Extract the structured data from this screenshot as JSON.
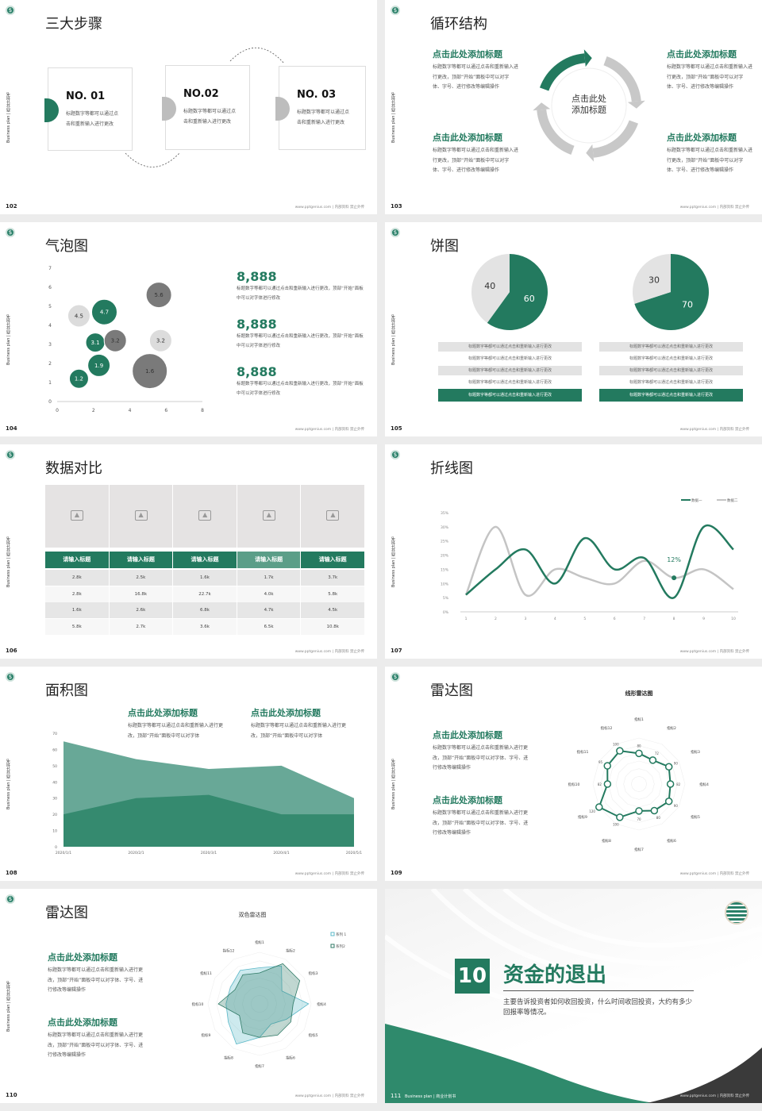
{
  "common": {
    "side_label": "Business plan | 商业计划书",
    "footer": "www.pptgenius.com | 内部资料 禁止外传",
    "logo": "dollar-seal-logo",
    "accent": "#237a5f",
    "gray": "#bdbdbd",
    "dark_gray": "#7a7a7a",
    "light_gray": "#dcdcdc"
  },
  "s102": {
    "page": "102",
    "title": "三大步骤",
    "steps": [
      {
        "no": "NO. 01",
        "text": "标题数字等都可以通过点击和重新输入进行更改"
      },
      {
        "no": "NO.02",
        "text": "标题数字等都可以通过点击和重新输入进行更改"
      },
      {
        "no": "NO. 03",
        "text": "标题数字等都可以通过点击和重新输入进行更改"
      }
    ]
  },
  "s103": {
    "page": "103",
    "title": "循环结构",
    "center": "点击此处添加标题",
    "blocks": [
      {
        "title": "点击此处添加标题",
        "text": "标题数字等都可以通过点击和重新输入进行更改，顶部“开始”面板中可以对字体、字号、进行修改等编辑操作"
      },
      {
        "title": "点击此处添加标题",
        "text": "标题数字等都可以通过点击和重新输入进行更改，顶部“开始”面板中可以对字体、字号、进行修改等编辑操作"
      },
      {
        "title": "点击此处添加标题",
        "text": "标题数字等都可以通过点击和重新输入进行更改，顶部“开始”面板中可以对字体、字号、进行修改等编辑操作"
      },
      {
        "title": "点击此处添加标题",
        "text": "标题数字等都可以通过点击和重新输入进行更改，顶部“开始”面板中可以对字体、字号、进行修改等编辑操作"
      }
    ]
  },
  "s104": {
    "page": "104",
    "title": "气泡图",
    "stats": [
      {
        "value": "8,888",
        "text": "标题数字等都可以通过点击和重新输入进行更改，顶部“开始”面板中可以对字体进行修改"
      },
      {
        "value": "8,888",
        "text": "标题数字等都可以通过点击和重新输入进行更改，顶部“开始”面板中可以对字体进行修改"
      },
      {
        "value": "8,888",
        "text": "标题数字等都可以通过点击和重新输入进行更改，顶部“开始”面板中可以对字体进行修改"
      }
    ]
  },
  "s105": {
    "page": "105",
    "title": "饼图",
    "row_text": "标题数字等都可以通过点击和重新输入进行更改"
  },
  "s106": {
    "page": "106",
    "title": "数据对比",
    "image_icon": "image-placeholder-icon",
    "headers": [
      "请输入标题",
      "请输入标题",
      "请输入标题",
      "请输入标题",
      "请输入标题"
    ],
    "rows": [
      [
        "2.8k",
        "2.5k",
        "1.6k",
        "1.7k",
        "3.7k"
      ],
      [
        "2.8k",
        "16.8k",
        "22.7k",
        "4.0k",
        "5.8k"
      ],
      [
        "1.6k",
        "2.6k",
        "6.8k",
        "4.7k",
        "4.5k"
      ],
      [
        "5.8k",
        "2.7k",
        "3.6k",
        "6.5k",
        "10.8k"
      ]
    ]
  },
  "s107": {
    "page": "107",
    "title": "折线图"
  },
  "s108": {
    "page": "108",
    "title": "面积图",
    "blocks": [
      {
        "title": "点击此处添加标题",
        "text": "标题数字等都可以通过点击和重新输入进行更改，顶部“开始”面板中可以对字体"
      },
      {
        "title": "点击此处添加标题",
        "text": "标题数字等都可以通过点击和重新输入进行更改，顶部“开始”面板中可以对字体"
      }
    ]
  },
  "s109": {
    "page": "109",
    "title": "雷达图",
    "blocks": [
      {
        "title": "点击此处添加标题",
        "text": "标题数字等都可以通过点击和重新输入进行更改，顶部“开始”面板中可以对字体、字号、进行修改等编辑操作"
      },
      {
        "title": "点击此处添加标题",
        "text": "标题数字等都可以通过点击和重新输入进行更改，顶部“开始”面板中可以对字体、字号、进行修改等编辑操作"
      }
    ]
  },
  "s110": {
    "page": "110",
    "title": "雷达图",
    "blocks": [
      {
        "title": "点击此处添加标题",
        "text": "标题数字等都可以通过点击和重新输入进行更改，顶部“开始”面板中可以对字体、字号、进行修改等编辑操作"
      },
      {
        "title": "点击此处添加标题",
        "text": "标题数字等都可以通过点击和重新输入进行更改，顶部“开始”面板中可以对字体、字号、进行修改等编辑操作"
      }
    ]
  },
  "s111": {
    "page": "111",
    "footer_label": "Business plan | 商业计划书",
    "number": "10",
    "title": "资金的退出",
    "desc": "主要告诉投资者如何收回投资，什么时间收回投资，大约有多少回报率等情况。"
  },
  "chart_data": [
    {
      "type": "scatter",
      "subtype": "bubble",
      "xlim": [
        0,
        8
      ],
      "ylim": [
        0,
        7
      ],
      "xticks": [
        0,
        2,
        4,
        6,
        8
      ],
      "yticks": [
        0,
        1,
        2,
        3,
        4,
        5,
        6,
        7
      ],
      "points": [
        {
          "x": 1.2,
          "y": 1.2,
          "size": 1.2,
          "label": "1.2",
          "color": "green"
        },
        {
          "x": 2.3,
          "y": 1.9,
          "size": 1.9,
          "label": "1.9",
          "color": "green"
        },
        {
          "x": 2.1,
          "y": 3.1,
          "size": 3.1,
          "label": "3.1",
          "color": "green"
        },
        {
          "x": 2.6,
          "y": 4.7,
          "size": 4.7,
          "label": "4.7",
          "color": "green"
        },
        {
          "x": 1.2,
          "y": 4.5,
          "size": 4.5,
          "label": "4.5",
          "color": "light"
        },
        {
          "x": 3.2,
          "y": 3.2,
          "size": 3.2,
          "label": "3.2",
          "color": "dark"
        },
        {
          "x": 5.6,
          "y": 5.6,
          "size": 5.6,
          "label": "5.6",
          "color": "dark"
        },
        {
          "x": 5.7,
          "y": 3.2,
          "size": 3.2,
          "label": "3.2",
          "color": "light"
        },
        {
          "x": 5.1,
          "y": 1.6,
          "size": 7,
          "label": "1.6",
          "color": "dark"
        }
      ]
    },
    {
      "type": "pie",
      "values": [
        60,
        40
      ],
      "labels": [
        "60",
        "40"
      ]
    },
    {
      "type": "pie",
      "values": [
        70,
        30
      ],
      "labels": [
        "70",
        "30"
      ]
    },
    {
      "type": "line",
      "x": [
        1,
        2,
        3,
        4,
        5,
        6,
        7,
        8,
        9,
        10
      ],
      "ylim": [
        0,
        35
      ],
      "yticks": [
        "0%",
        "5%",
        "10%",
        "15%",
        "20%",
        "25%",
        "30%",
        "35%"
      ],
      "legend": "top-right",
      "series": [
        {
          "name": "数据一",
          "values": [
            6,
            15,
            22,
            10,
            26,
            15,
            19,
            5,
            30,
            22
          ],
          "color": "#237a5f"
        },
        {
          "name": "数据二",
          "values": [
            6,
            30,
            6,
            15,
            12,
            10,
            18,
            12,
            15,
            8
          ],
          "color": "#c4c4c4"
        }
      ],
      "annotation": {
        "x": 8,
        "y": 12,
        "label": "12%"
      }
    },
    {
      "type": "area",
      "categories": [
        "2020/1/1",
        "2020/2/1",
        "2020/3/1",
        "2020/4/1",
        "2020/5/1"
      ],
      "ylim": [
        0,
        70
      ],
      "yticks": [
        0,
        10,
        20,
        30,
        40,
        50,
        60,
        70
      ],
      "series": [
        {
          "values": [
            65,
            54,
            48,
            50,
            30
          ],
          "color": "#68a897"
        },
        {
          "values": [
            20,
            30,
            32,
            20,
            20
          ],
          "color": "#358a6f"
        }
      ]
    },
    {
      "type": "radar",
      "title": "线形雷达图",
      "axes": [
        "指标1",
        "指标2",
        "指标3",
        "指标4",
        "指标5",
        "指标6",
        "指标7",
        "指标8",
        "指标9",
        "指标10",
        "指标11",
        "指标12"
      ],
      "max": 120,
      "series": [
        {
          "values": [
            80,
            72,
            90,
            82,
            90,
            80,
            70,
            100,
            120,
            82,
            95,
            100
          ],
          "labels": [
            "80",
            "72",
            "90",
            "82",
            "90",
            "80",
            "70",
            "100",
            "120",
            "82",
            "95",
            "100"
          ]
        }
      ]
    },
    {
      "type": "radar",
      "title": "双色雷达图",
      "axes": [
        "指标1",
        "指标2",
        "指标3",
        "指标4",
        "指标5",
        "指标6",
        "指标7",
        "指标8",
        "指标9",
        "指标10",
        "指标11",
        "指标12"
      ],
      "max": 100,
      "legend": "top-right",
      "series": [
        {
          "name": "系列 1",
          "values": [
            70,
            85,
            50,
            95,
            60,
            45,
            65,
            90,
            70,
            65,
            65,
            75
          ],
          "color": "#5bb8c8"
        },
        {
          "name": "系列2",
          "values": [
            60,
            90,
            90,
            65,
            70,
            70,
            65,
            65,
            45,
            80,
            55,
            65
          ],
          "color": "#2f7a66"
        }
      ]
    }
  ]
}
